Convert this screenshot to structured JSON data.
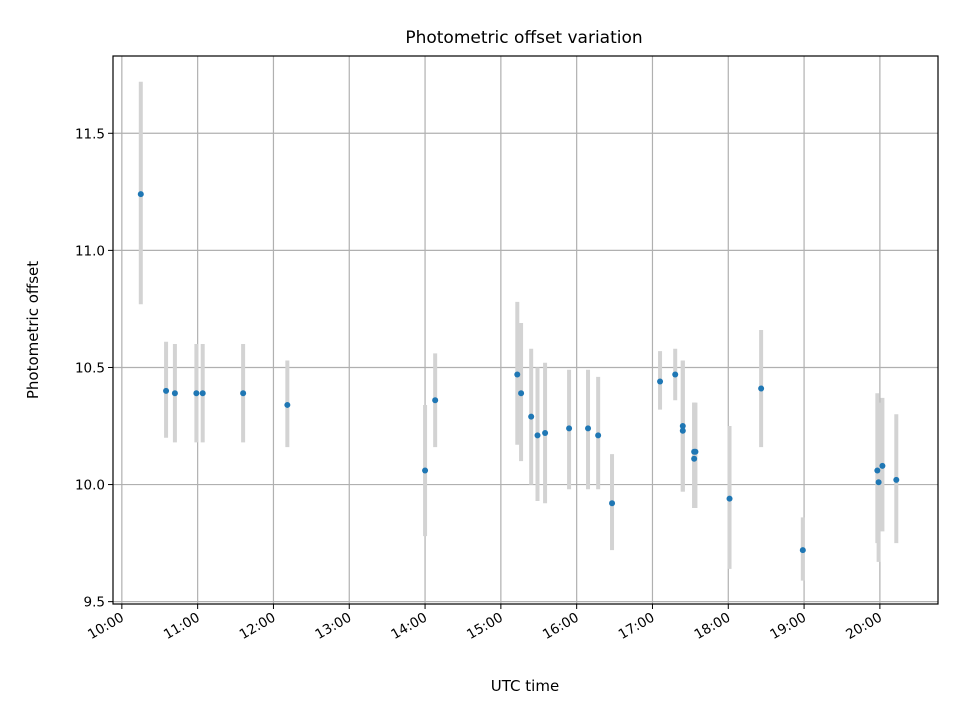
{
  "chart_data": {
    "type": "scatter",
    "title": "Photometric offset variation",
    "xlabel": "UTC time",
    "ylabel": "Photometric offset",
    "x_unit": "UTC time (HH:MM)",
    "xlim": [
      "09:53",
      "20:46"
    ],
    "ylim": [
      9.49,
      11.83
    ],
    "x_ticks": [
      "10:00",
      "11:00",
      "12:00",
      "13:00",
      "14:00",
      "15:00",
      "16:00",
      "17:00",
      "18:00",
      "19:00",
      "20:00"
    ],
    "y_ticks": [
      "9.5",
      "10.0",
      "10.5",
      "11.0",
      "11.5"
    ],
    "grid": true,
    "point_color": "#1f77b4",
    "errorbar_color": "#d3d3d3",
    "points": [
      {
        "x": "10:15",
        "y": 11.24,
        "lo": 10.77,
        "hi": 11.72
      },
      {
        "x": "10:35",
        "y": 10.4,
        "lo": 10.2,
        "hi": 10.61
      },
      {
        "x": "10:42",
        "y": 10.39,
        "lo": 10.18,
        "hi": 10.6
      },
      {
        "x": "10:59",
        "y": 10.39,
        "lo": 10.18,
        "hi": 10.6
      },
      {
        "x": "11:04",
        "y": 10.39,
        "lo": 10.18,
        "hi": 10.6
      },
      {
        "x": "11:36",
        "y": 10.39,
        "lo": 10.18,
        "hi": 10.6
      },
      {
        "x": "12:11",
        "y": 10.34,
        "lo": 10.16,
        "hi": 10.53
      },
      {
        "x": "14:00",
        "y": 10.06,
        "lo": 9.78,
        "hi": 10.34
      },
      {
        "x": "14:08",
        "y": 10.36,
        "lo": 10.16,
        "hi": 10.56
      },
      {
        "x": "15:13",
        "y": 10.47,
        "lo": 10.17,
        "hi": 10.78
      },
      {
        "x": "15:16",
        "y": 10.39,
        "lo": 10.1,
        "hi": 10.69
      },
      {
        "x": "15:24",
        "y": 10.29,
        "lo": 10.0,
        "hi": 10.58
      },
      {
        "x": "15:29",
        "y": 10.21,
        "lo": 9.93,
        "hi": 10.5
      },
      {
        "x": "15:35",
        "y": 10.22,
        "lo": 9.92,
        "hi": 10.52
      },
      {
        "x": "15:54",
        "y": 10.24,
        "lo": 9.98,
        "hi": 10.49
      },
      {
        "x": "16:09",
        "y": 10.24,
        "lo": 9.98,
        "hi": 10.49
      },
      {
        "x": "16:17",
        "y": 10.21,
        "lo": 9.98,
        "hi": 10.46
      },
      {
        "x": "16:28",
        "y": 9.92,
        "lo": 9.72,
        "hi": 10.13
      },
      {
        "x": "17:06",
        "y": 10.44,
        "lo": 10.32,
        "hi": 10.57
      },
      {
        "x": "17:18",
        "y": 10.47,
        "lo": 10.36,
        "hi": 10.58
      },
      {
        "x": "17:24",
        "y": 10.25,
        "lo": 9.97,
        "hi": 10.53
      },
      {
        "x": "17:24",
        "y": 10.23,
        "lo": 9.97,
        "hi": 10.53
      },
      {
        "x": "17:33",
        "y": 10.14,
        "lo": 9.9,
        "hi": 10.35
      },
      {
        "x": "17:33",
        "y": 10.11,
        "lo": 9.9,
        "hi": 10.35
      },
      {
        "x": "17:34",
        "y": 10.14,
        "lo": 9.9,
        "hi": 10.35
      },
      {
        "x": "18:01",
        "y": 9.94,
        "lo": 9.64,
        "hi": 10.25
      },
      {
        "x": "18:26",
        "y": 10.41,
        "lo": 10.16,
        "hi": 10.66
      },
      {
        "x": "18:59",
        "y": 9.72,
        "lo": 9.59,
        "hi": 9.86
      },
      {
        "x": "19:58",
        "y": 10.06,
        "lo": 9.75,
        "hi": 10.39
      },
      {
        "x": "19:59",
        "y": 10.01,
        "lo": 9.67,
        "hi": 10.35
      },
      {
        "x": "20:02",
        "y": 10.08,
        "lo": 9.8,
        "hi": 10.37
      },
      {
        "x": "20:13",
        "y": 10.02,
        "lo": 9.75,
        "hi": 10.3
      }
    ]
  }
}
